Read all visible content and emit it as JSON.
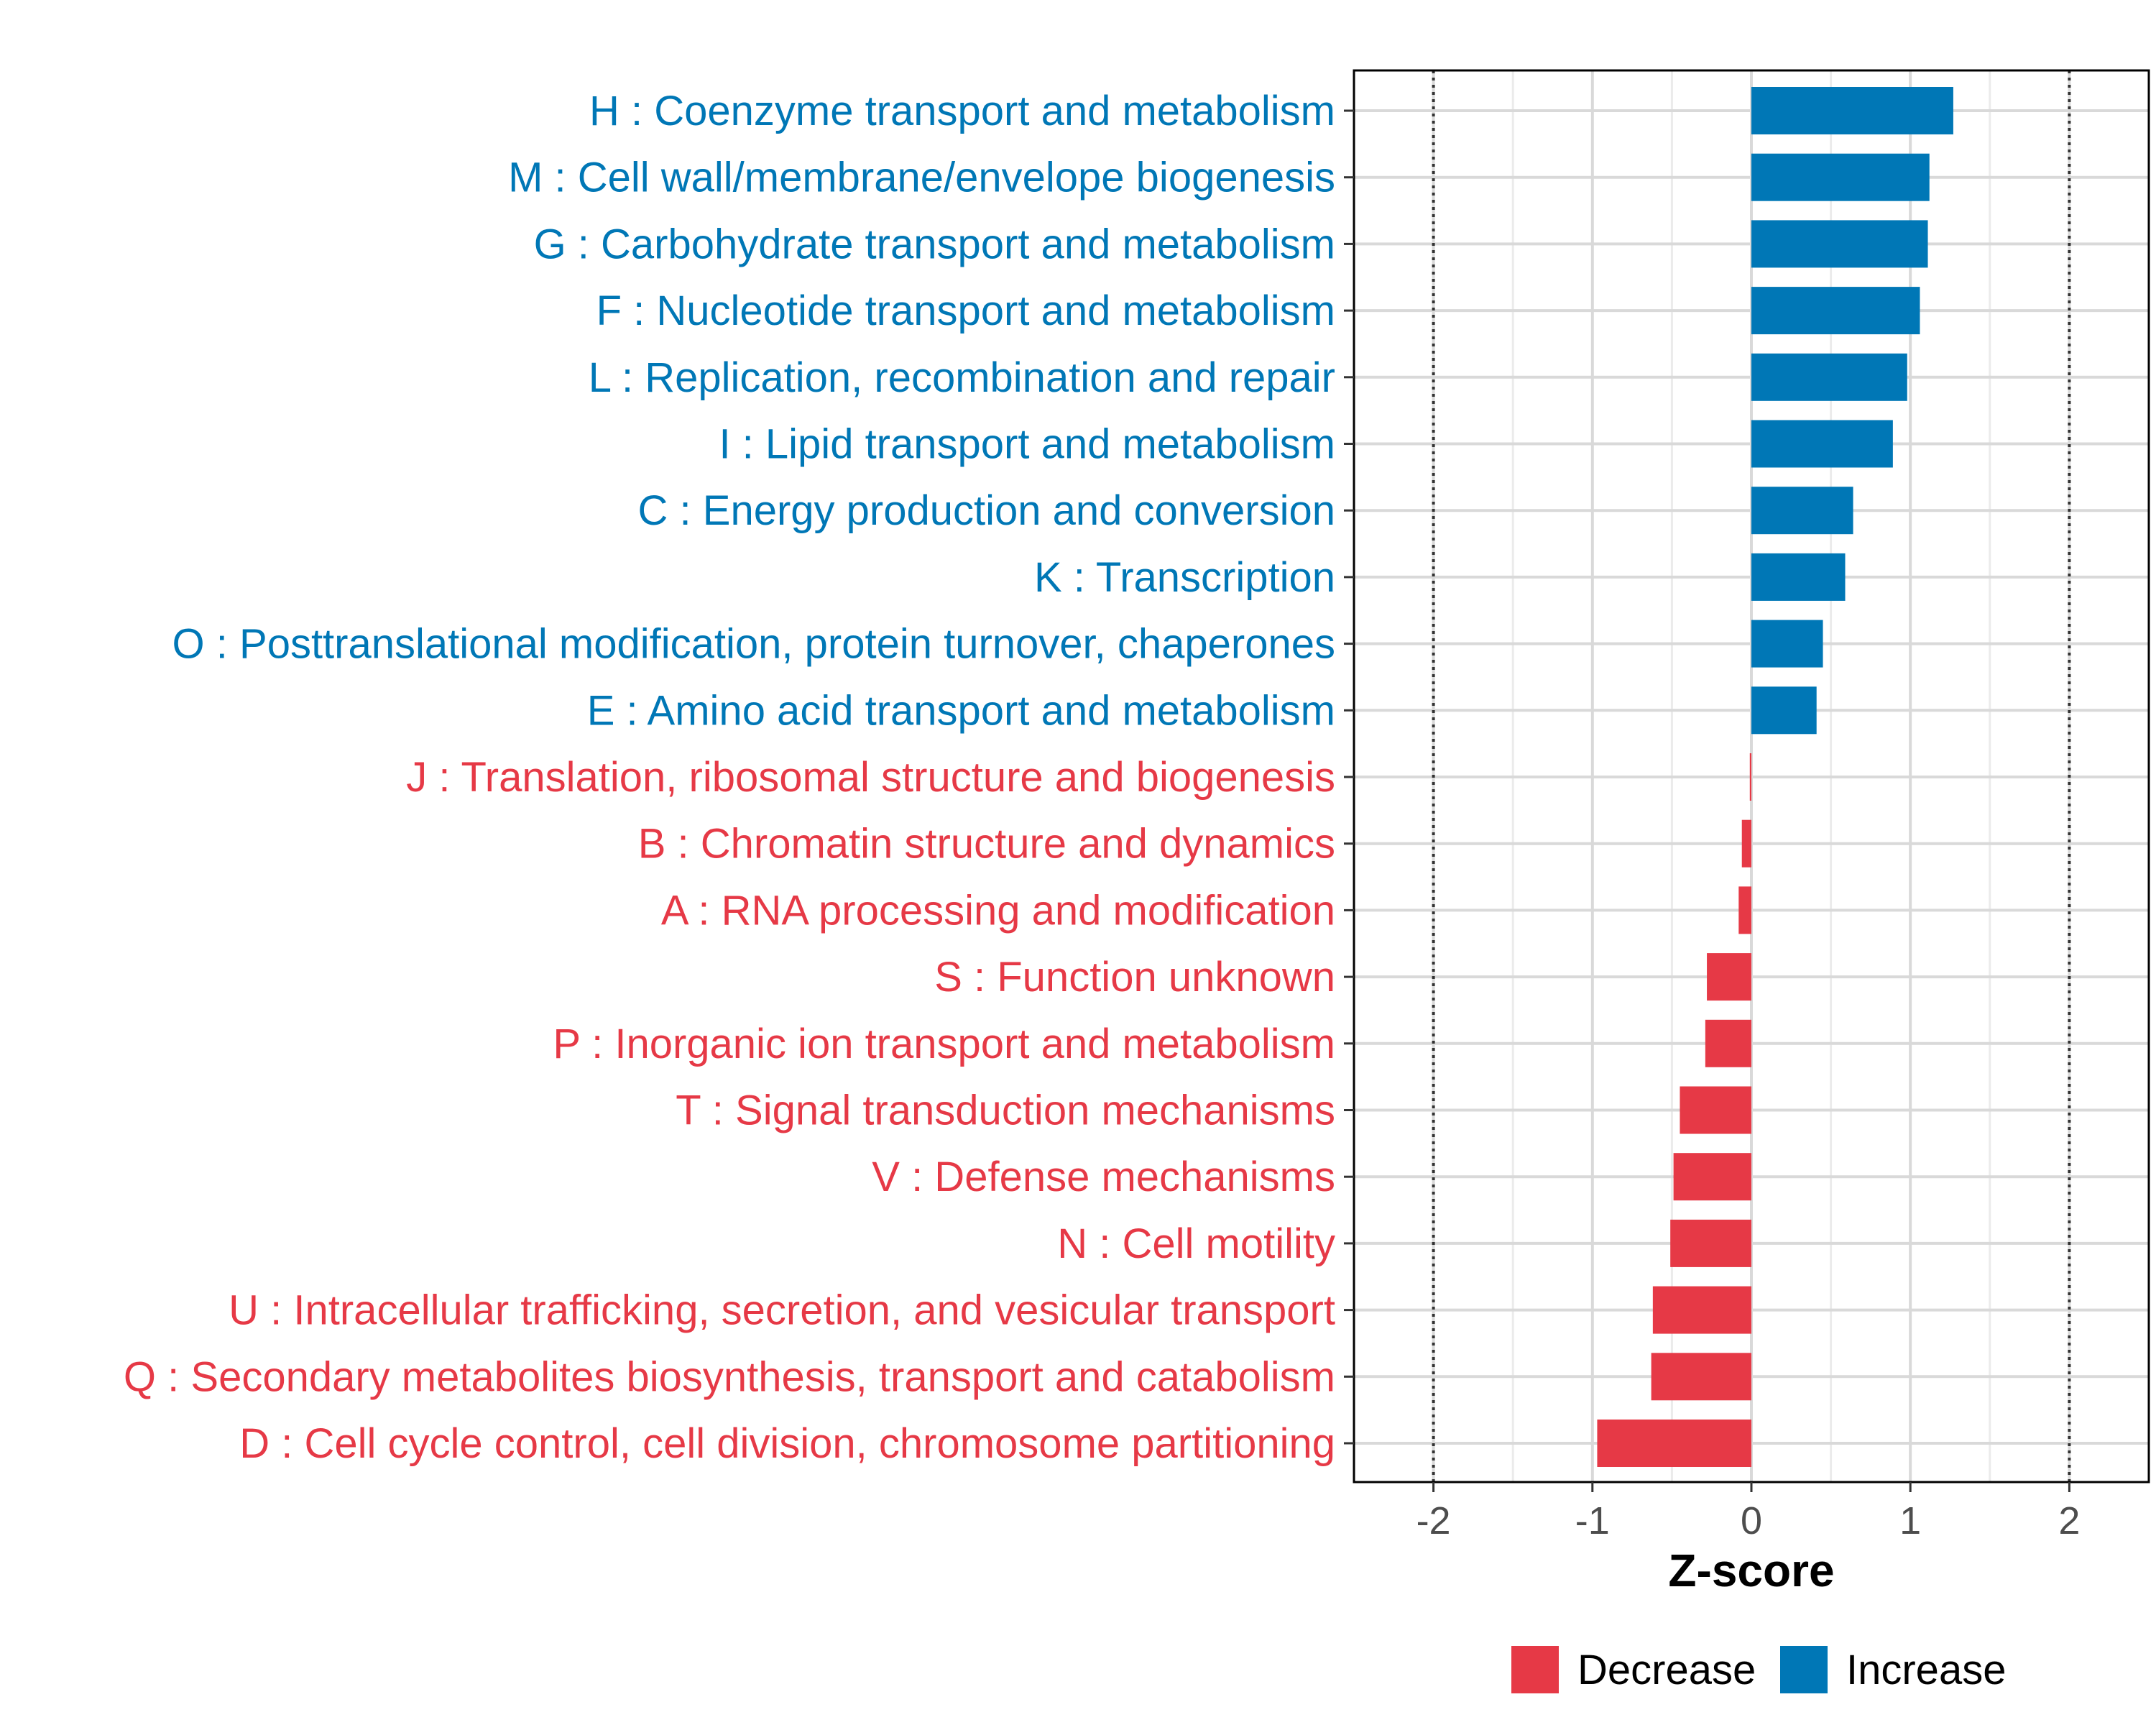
{
  "chart_data": {
    "type": "bar",
    "orientation": "horizontal",
    "xlabel": "Z-score",
    "ylabel": "",
    "xlim": [
      -2.5,
      2.5
    ],
    "x_ticks": [
      -2,
      -1,
      0,
      1,
      2
    ],
    "x_tick_labels": [
      "-2",
      "-1",
      "0",
      "1",
      "2"
    ],
    "reference_lines": [
      -2,
      2
    ],
    "grid": true,
    "categories": [
      "H : Coenzyme transport and metabolism",
      "M : Cell wall/membrane/envelope biogenesis",
      "G : Carbohydrate transport and metabolism",
      "F : Nucleotide transport and metabolism",
      "L : Replication, recombination and repair",
      "I : Lipid transport and metabolism",
      "C : Energy production and conversion",
      "K : Transcription",
      "O : Posttranslational modification, protein turnover, chaperones",
      "E : Amino acid transport and metabolism",
      "J : Translation, ribosomal structure and biogenesis",
      "B : Chromatin structure and dynamics",
      "A : RNA processing and modification",
      "S : Function unknown",
      "P : Inorganic ion transport and metabolism",
      "T : Signal transduction mechanisms",
      "V : Defense mechanisms",
      "N : Cell motility",
      "U : Intracellular trafficking, secretion, and vesicular transport",
      "Q : Secondary metabolites biosynthesis, transport and catabolism",
      "D : Cell cycle control, cell division, chromosome partitioning"
    ],
    "values": [
      1.27,
      1.12,
      1.11,
      1.06,
      0.98,
      0.89,
      0.64,
      0.59,
      0.45,
      0.41,
      -0.01,
      -0.06,
      -0.08,
      -0.28,
      -0.29,
      -0.45,
      -0.49,
      -0.51,
      -0.62,
      -0.63,
      -0.97
    ],
    "groups": [
      "Increase",
      "Increase",
      "Increase",
      "Increase",
      "Increase",
      "Increase",
      "Increase",
      "Increase",
      "Increase",
      "Increase",
      "Decrease",
      "Decrease",
      "Decrease",
      "Decrease",
      "Decrease",
      "Decrease",
      "Decrease",
      "Decrease",
      "Decrease",
      "Decrease",
      "Decrease"
    ],
    "legend": {
      "position": "bottom",
      "entries": [
        {
          "label": "Decrease",
          "color": "#E63946"
        },
        {
          "label": "Increase",
          "color": "#0077B6"
        }
      ]
    },
    "colors": {
      "Decrease": "#E63946",
      "Increase": "#0077B6"
    }
  }
}
